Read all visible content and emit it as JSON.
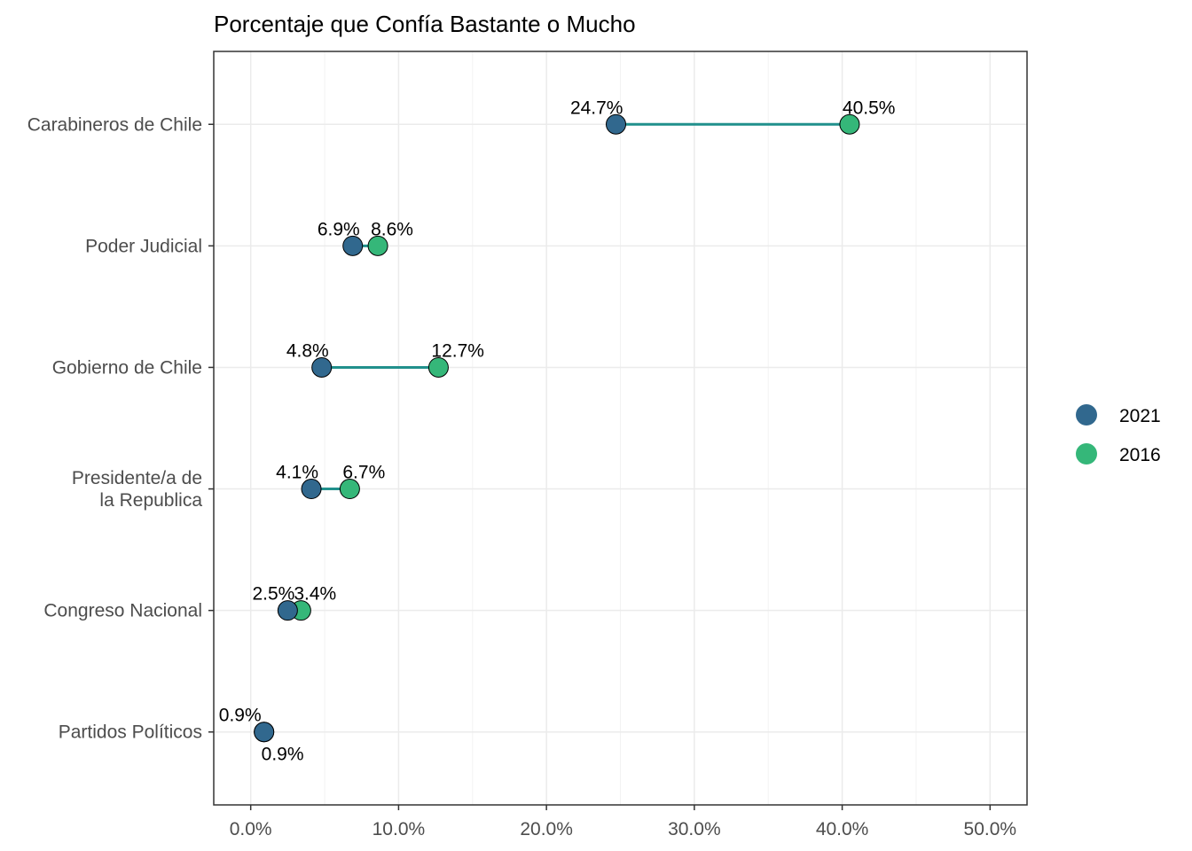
{
  "chart_data": {
    "type": "dumbbell",
    "title": "Porcentaje que Confía Bastante o Mucho",
    "xlabel": "",
    "ylabel": "",
    "xlim": [
      -2.5,
      52.5
    ],
    "x_ticks": [
      0,
      10,
      20,
      30,
      40,
      50
    ],
    "x_tick_labels": [
      "0.0%",
      "10.0%",
      "20.0%",
      "30.0%",
      "40.0%",
      "50.0%"
    ],
    "categories": [
      [
        "Carabineros de Chile"
      ],
      [
        "Poder Judicial"
      ],
      [
        "Gobierno de Chile"
      ],
      [
        "Presidente/a de",
        "la Republica"
      ],
      [
        "Congreso Nacional"
      ],
      [
        "Partidos Políticos"
      ]
    ],
    "series": [
      {
        "name": "2021",
        "color": "#31688e",
        "values": [
          24.7,
          6.9,
          4.8,
          4.1,
          2.5,
          0.9
        ],
        "labels": [
          "24.7%",
          "6.9%",
          "4.8%",
          "4.1%",
          "2.5%",
          "0.9%"
        ]
      },
      {
        "name": "2016",
        "color": "#35b779",
        "values": [
          40.5,
          8.6,
          12.7,
          6.7,
          3.4,
          0.9
        ],
        "labels": [
          "40.5%",
          "8.6%",
          "12.7%",
          "6.7%",
          "3.4%",
          "0.9%"
        ]
      }
    ],
    "segment_color": "#21908c",
    "grid": true,
    "legend_position": "right"
  }
}
